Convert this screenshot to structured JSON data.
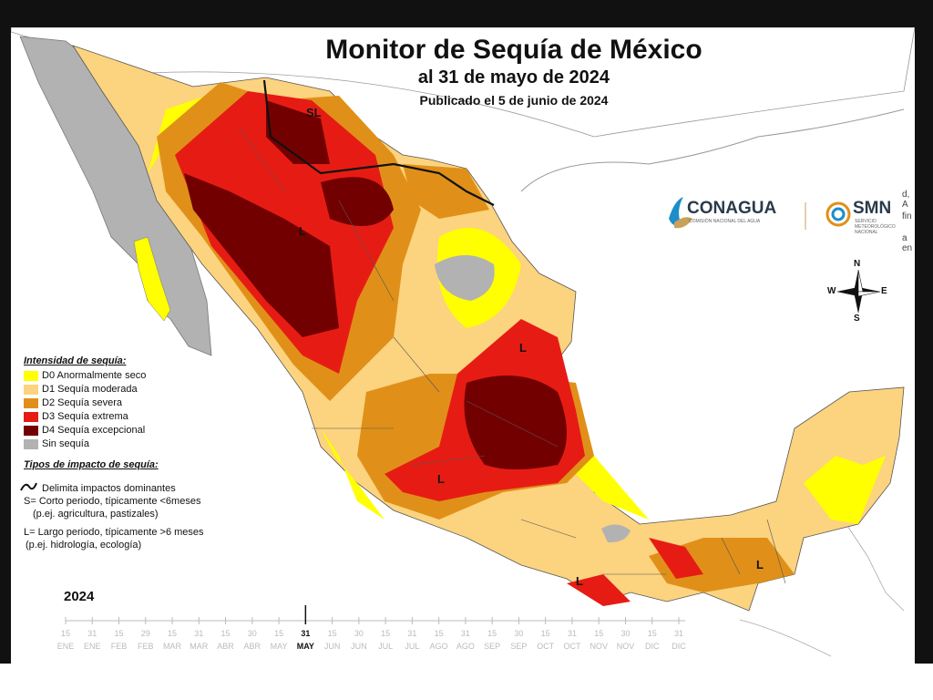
{
  "title": "Monitor de Sequía de México",
  "subtitle": "al 31 de mayo de 2024",
  "published": "Publicado el 5 de junio de 2024",
  "legend": {
    "heading": "Intensidad de sequía:",
    "items": [
      {
        "label": "D0 Anormalmente seco",
        "color": "#ffff00"
      },
      {
        "label": "D1 Sequía moderada",
        "color": "#fcd37f"
      },
      {
        "label": "D2 Sequía severa",
        "color": "#e09019"
      },
      {
        "label": "D3 Sequía extrema",
        "color": "#e61c14"
      },
      {
        "label": "D4 Sequía excepcional",
        "color": "#730000"
      },
      {
        "label": "Sin sequía",
        "color": "#b2b2b2"
      }
    ]
  },
  "impact": {
    "heading": "Tipos de impacto de sequía:",
    "line": "Delimita impactos dominantes",
    "s1": "S= Corto periodo, típicamente <6meses",
    "s2": "(p.ej. agricultura, pastizales)",
    "l1": "L= Largo periodo, típicamente >6 meses",
    "l2": "(p.ej. hidrología, ecología)"
  },
  "timeline": {
    "year": "2024",
    "ticks": [
      {
        "d": "15",
        "m": "ENE"
      },
      {
        "d": "31",
        "m": "ENE"
      },
      {
        "d": "15",
        "m": "FEB"
      },
      {
        "d": "29",
        "m": "FEB"
      },
      {
        "d": "15",
        "m": "MAR"
      },
      {
        "d": "31",
        "m": "MAR"
      },
      {
        "d": "15",
        "m": "ABR"
      },
      {
        "d": "30",
        "m": "ABR"
      },
      {
        "d": "15",
        "m": "MAY"
      },
      {
        "d": "31",
        "m": "MAY"
      },
      {
        "d": "15",
        "m": "JUN"
      },
      {
        "d": "30",
        "m": "JUN"
      },
      {
        "d": "15",
        "m": "JUL"
      },
      {
        "d": "31",
        "m": "JUL"
      },
      {
        "d": "15",
        "m": "AGO"
      },
      {
        "d": "31",
        "m": "AGO"
      },
      {
        "d": "15",
        "m": "SEP"
      },
      {
        "d": "30",
        "m": "SEP"
      },
      {
        "d": "15",
        "m": "OCT"
      },
      {
        "d": "31",
        "m": "OCT"
      },
      {
        "d": "15",
        "m": "NOV"
      },
      {
        "d": "30",
        "m": "NOV"
      },
      {
        "d": "15",
        "m": "DIC"
      },
      {
        "d": "31",
        "m": "DIC"
      }
    ],
    "current_index": 9
  },
  "map_labels": [
    "SL",
    "L",
    "L",
    "L",
    "L",
    "L"
  ],
  "logos": {
    "conagua": "CONAGUA",
    "conagua_sub": "COMISIÓN NACIONAL DEL AGUA",
    "smn": "SMN",
    "smn_sub": "SERVICIO METEOROLÓGICO NACIONAL"
  },
  "compass": {
    "n": "N",
    "s": "S",
    "e": "E",
    "w": "W"
  },
  "clipped_text": [
    "d, A",
    "fin",
    "a en"
  ]
}
